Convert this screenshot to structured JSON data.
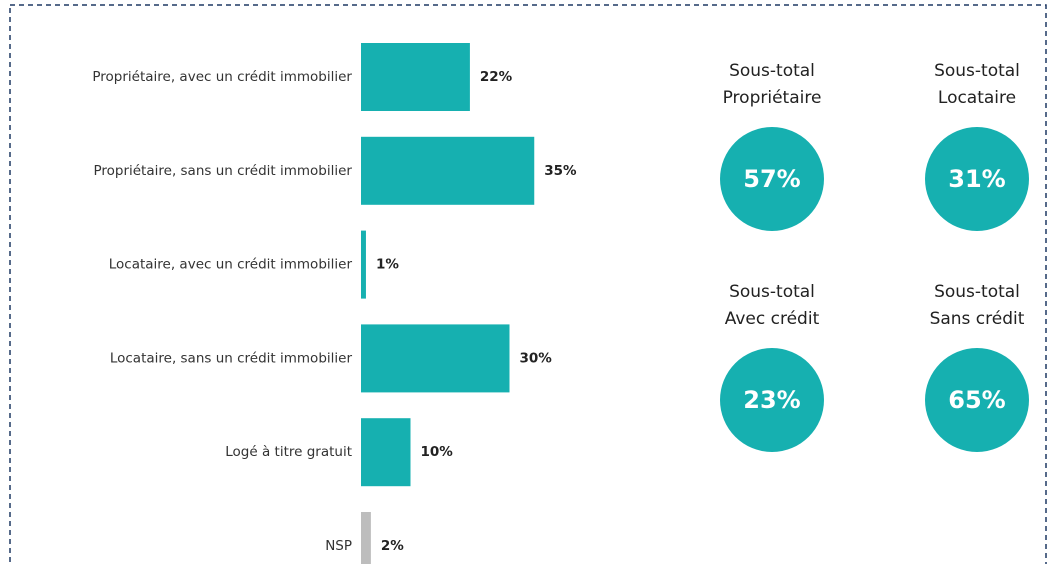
{
  "chart_data": [
    {
      "type": "bar",
      "orientation": "horizontal",
      "categories": [
        "Propriétaire, avec un crédit immobilier",
        "Propriétaire, sans un crédit immobilier",
        "Locataire, avec un crédit immobilier",
        "Locataire, sans un crédit immobilier",
        "Logé à titre gratuit",
        "NSP"
      ],
      "values": [
        22,
        35,
        1,
        30,
        10,
        2
      ],
      "value_labels": [
        "22%",
        "35%",
        "1%",
        "30%",
        "10%",
        "2%"
      ],
      "colors": [
        "#16b0b0",
        "#16b0b0",
        "#16b0b0",
        "#16b0b0",
        "#16b0b0",
        "#bdbdbd"
      ]
    },
    {
      "type": "kpi",
      "color": "#16b0b0",
      "items": [
        {
          "label": [
            "Sous-total",
            "Propriétaire"
          ],
          "value": 57,
          "value_label": "57%"
        },
        {
          "label": [
            "Sous-total",
            "Locataire"
          ],
          "value": 31,
          "value_label": "31%"
        },
        {
          "label": [
            "Sous-total",
            "Avec crédit"
          ],
          "value": 23,
          "value_label": "23%"
        },
        {
          "label": [
            "Sous-total",
            "Sans crédit"
          ],
          "value": 65,
          "value_label": "65%"
        }
      ]
    }
  ]
}
